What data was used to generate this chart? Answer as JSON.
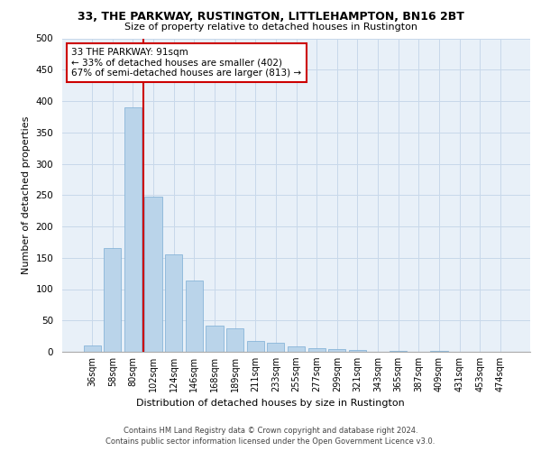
{
  "title": "33, THE PARKWAY, RUSTINGTON, LITTLEHAMPTON, BN16 2BT",
  "subtitle": "Size of property relative to detached houses in Rustington",
  "xlabel": "Distribution of detached houses by size in Rustington",
  "ylabel": "Number of detached properties",
  "bar_values": [
    10,
    165,
    390,
    248,
    155,
    113,
    42,
    38,
    17,
    14,
    8,
    6,
    4,
    3,
    0,
    2,
    0,
    2,
    0,
    0,
    0
  ],
  "bar_labels": [
    "36sqm",
    "58sqm",
    "80sqm",
    "102sqm",
    "124sqm",
    "146sqm",
    "168sqm",
    "189sqm",
    "211sqm",
    "233sqm",
    "255sqm",
    "277sqm",
    "299sqm",
    "321sqm",
    "343sqm",
    "365sqm",
    "387sqm",
    "409sqm",
    "431sqm",
    "453sqm",
    "474sqm"
  ],
  "bar_color": "#bad4ea",
  "bar_edge_color": "#7aadd4",
  "annotation_line1": "33 THE PARKWAY: 91sqm",
  "annotation_line2": "← 33% of detached houses are smaller (402)",
  "annotation_line3": "67% of semi-detached houses are larger (813) →",
  "annotation_box_color": "#ffffff",
  "annotation_box_edge": "#cc0000",
  "red_line_color": "#cc0000",
  "grid_color": "#c8d8ea",
  "background_color": "#e8f0f8",
  "ylim": [
    0,
    500
  ],
  "yticks": [
    0,
    50,
    100,
    150,
    200,
    250,
    300,
    350,
    400,
    450,
    500
  ],
  "footer_line1": "Contains HM Land Registry data © Crown copyright and database right 2024.",
  "footer_line2": "Contains public sector information licensed under the Open Government Licence v3.0."
}
